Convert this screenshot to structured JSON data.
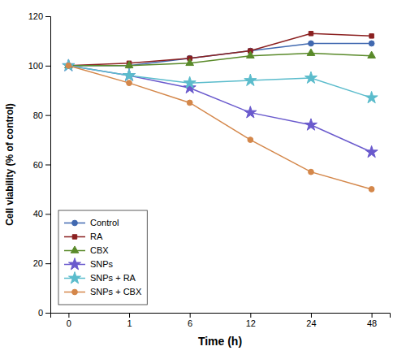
{
  "chart_data": {
    "type": "line",
    "xlabel": "Time (h)",
    "ylabel": "Cell viability (% of control)",
    "categories": [
      "0",
      "1",
      "6",
      "12",
      "24",
      "48"
    ],
    "series": [
      {
        "name": "Control",
        "color": "#4169B0",
        "marker": "circle",
        "values": [
          100,
          100,
          103,
          106,
          109,
          109
        ]
      },
      {
        "name": "RA",
        "color": "#8B2020",
        "marker": "square",
        "values": [
          100,
          101,
          103,
          106,
          113,
          112
        ]
      },
      {
        "name": "CBX",
        "color": "#5A8A2A",
        "marker": "triangle",
        "values": [
          100,
          100,
          101,
          104,
          105,
          104
        ]
      },
      {
        "name": "SNPs",
        "color": "#6A5ACD",
        "marker": "star",
        "values": [
          100,
          96,
          91,
          81,
          76,
          65
        ]
      },
      {
        "name": "SNPs + RA",
        "color": "#5BBCCC",
        "marker": "star",
        "values": [
          100,
          96,
          93,
          94,
          95,
          87
        ]
      },
      {
        "name": "SNPs + CBX",
        "color": "#D4874A",
        "marker": "circle",
        "values": [
          100,
          93,
          85,
          70,
          57,
          50
        ]
      }
    ],
    "ylim": [
      0,
      120
    ],
    "yticks": [
      0,
      20,
      40,
      60,
      80,
      100,
      120
    ],
    "legend": "lower left",
    "grid": false
  }
}
